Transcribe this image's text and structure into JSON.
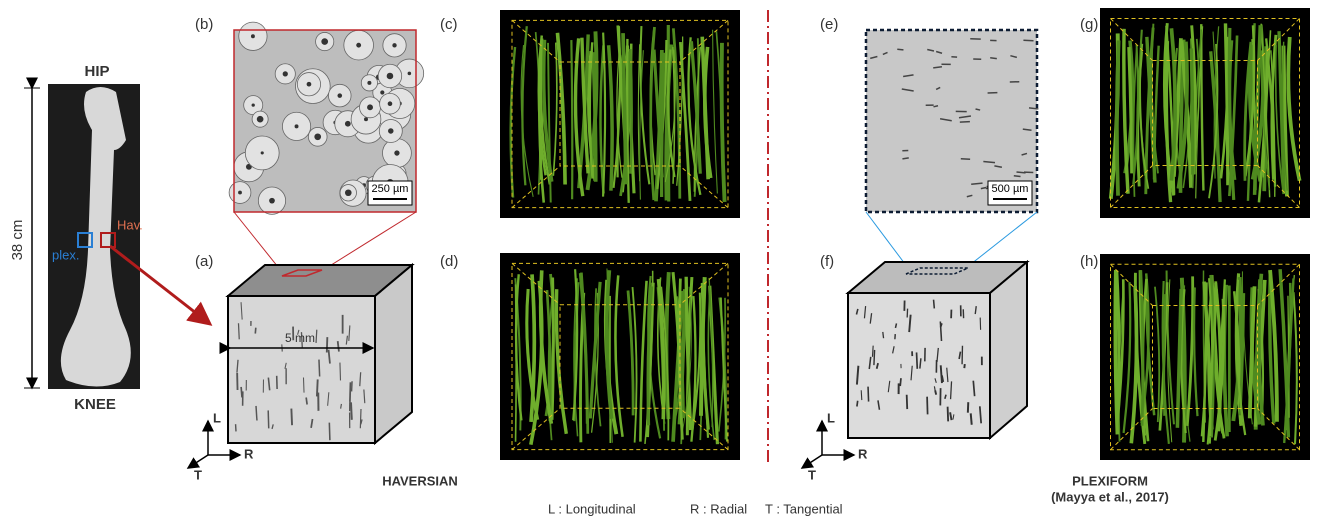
{
  "bone": {
    "top": "HIP",
    "bottom": "KNEE",
    "length": "38 cm",
    "plex": "plex.",
    "hav": "Hav."
  },
  "panels": {
    "a": "(a)",
    "b": "(b)",
    "c": "(c)",
    "d": "(d)",
    "e": "(e)",
    "f": "(f)",
    "g": "(g)",
    "h": "(h)"
  },
  "scale_bars": {
    "b": "250 µm",
    "e": "500 µm",
    "a": "5 mm"
  },
  "axes_haversian": {
    "l": "L",
    "r": "R",
    "t": "T"
  },
  "axes_plexiform": {
    "l": "L",
    "r": "R",
    "t": "T"
  },
  "groups": {
    "haversian": "HAVERSIAN",
    "plexiform": "PLEXIFORM",
    "citation": "(Mayya et al., 2017)"
  },
  "legend": [
    "L : Longitudinal",
    "R : Radial",
    "T : Tangential"
  ]
}
